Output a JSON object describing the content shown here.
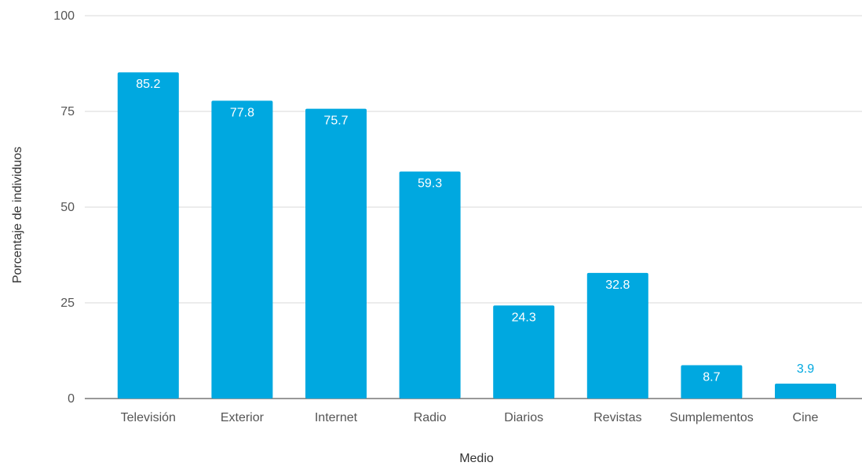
{
  "chart_data": {
    "type": "bar",
    "title": "",
    "xlabel": "Medio",
    "ylabel": "Porcentaje de individuos",
    "categories": [
      "Televisión",
      "Exterior",
      "Internet",
      "Radio",
      "Diarios",
      "Revistas",
      "Sumplementos",
      "Cine"
    ],
    "values": [
      85.2,
      77.8,
      75.7,
      59.3,
      24.3,
      32.8,
      8.7,
      3.9
    ],
    "value_labels": [
      "85.2",
      "77.8",
      "75.7",
      "59.3",
      "24.3",
      "32.8",
      "8.7",
      "3.9"
    ],
    "ylim": [
      0,
      100
    ],
    "yticks": [
      0,
      25,
      50,
      75,
      100
    ],
    "ytick_labels": [
      "0",
      "25",
      "50",
      "75",
      "100"
    ],
    "grid": true,
    "legend": "none",
    "bar_color": "#00a8e0",
    "label_color_inside": "#ffffff",
    "label_color_outside": "#00a8e0"
  }
}
